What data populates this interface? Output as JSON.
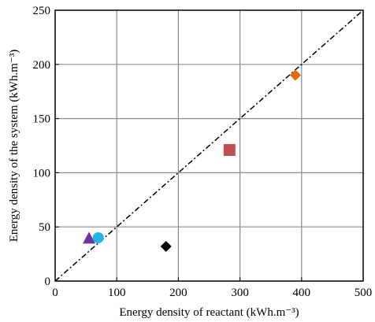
{
  "chart_data": {
    "type": "scatter",
    "xlabel": "Energy density of reactant (kWh.m⁻³)",
    "ylabel": "Energy density of the system (kWh.m⁻³)",
    "xlim": [
      0,
      500
    ],
    "ylim": [
      0,
      250
    ],
    "xticks": [
      0,
      100,
      200,
      300,
      400,
      500
    ],
    "yticks": [
      0,
      50,
      100,
      150,
      200,
      250
    ],
    "grid": true,
    "reference_line": {
      "style": "dash-dot",
      "from": [
        0,
        0
      ],
      "to": [
        500,
        250
      ]
    },
    "points": [
      {
        "x": 55,
        "y": 39,
        "marker": "triangle",
        "color": "#7030a0"
      },
      {
        "x": 70,
        "y": 40,
        "marker": "circle",
        "color": "#1fb5ea"
      },
      {
        "x": 180,
        "y": 32,
        "marker": "diamond",
        "color": "#000000"
      },
      {
        "x": 283,
        "y": 121,
        "marker": "square",
        "color": "#c0504d"
      },
      {
        "x": 390,
        "y": 190,
        "marker": "diamond",
        "color": "#e36c09"
      }
    ]
  }
}
